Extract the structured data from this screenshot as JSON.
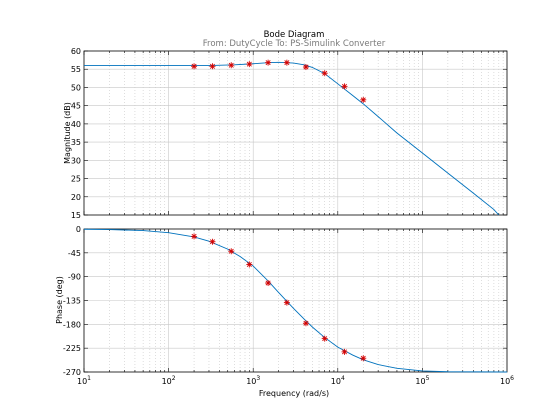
{
  "chart_data": {
    "type": "line",
    "title": "Bode Diagram",
    "subtitle": "From: DutyCycle  To: PS-Simulink Converter",
    "xlabel": "Frequency  (rad/s)",
    "xscale": "log",
    "xlim": [
      10,
      1000000
    ],
    "x_tick_base": "10",
    "x_tick_exponents": [
      "1",
      "2",
      "3",
      "4",
      "5",
      "6"
    ],
    "grid": true,
    "curve_color": "#0072bd",
    "marker_color": "#d40000",
    "magnitude": {
      "ylabel": "Magnitude (dB)",
      "ylim": [
        15,
        60
      ],
      "yticks": [
        15,
        20,
        25,
        30,
        35,
        40,
        45,
        50,
        55,
        60
      ],
      "model": {
        "x": [
          10,
          100,
          300,
          600,
          1000,
          1500,
          2000,
          3000,
          4000,
          5000,
          7000,
          10000,
          15000,
          20000,
          30000,
          50000,
          100000,
          200000,
          400000,
          700000,
          800000
        ],
        "y": [
          56,
          56,
          56,
          56.2,
          56.5,
          56.8,
          56.9,
          56.7,
          56.2,
          55.5,
          53.8,
          51,
          47.8,
          45.5,
          42,
          37.5,
          32,
          26.5,
          21,
          16.5,
          15
        ]
      },
      "measured": {
        "x": [
          200,
          330,
          550,
          900,
          1500,
          2500,
          4200,
          7000,
          12000,
          20000
        ],
        "y": [
          55.8,
          55.8,
          56.1,
          56.4,
          56.8,
          56.8,
          55.6,
          53.9,
          50.3,
          46.6
        ]
      }
    },
    "phase": {
      "ylabel": "Phase (deg)",
      "ylim": [
        -270,
        0
      ],
      "yticks": [
        0,
        -45,
        -90,
        -135,
        -180,
        -225,
        -270
      ],
      "model": {
        "x": [
          10,
          20,
          50,
          100,
          200,
          300,
          500,
          700,
          1000,
          1500,
          2000,
          3000,
          4000,
          5000,
          7000,
          10000,
          15000,
          20000,
          30000,
          50000,
          100000,
          200000,
          1000000
        ],
        "y": [
          -0.5,
          -1,
          -3,
          -7,
          -15,
          -23,
          -38,
          -52,
          -70,
          -98,
          -120,
          -150,
          -170,
          -185,
          -205,
          -223,
          -238,
          -247,
          -256,
          -263,
          -268,
          -269.5,
          -270
        ]
      },
      "measured": {
        "x": [
          200,
          330,
          550,
          900,
          1500,
          2500,
          4200,
          7000,
          12000,
          20000
        ],
        "y": [
          -14,
          -24,
          -42,
          -67,
          -102,
          -139,
          -178,
          -207,
          -232,
          -244
        ]
      }
    }
  }
}
